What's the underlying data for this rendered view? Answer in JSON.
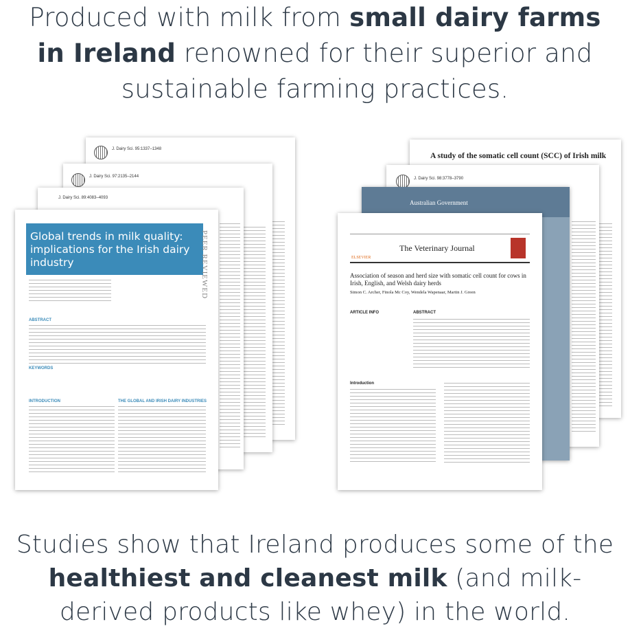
{
  "header": {
    "lead": "Produced with milk from ",
    "bold": "small dairy farms in Ireland",
    "tail": " renowned for their superior and sustainable farming practices."
  },
  "left_papers": {
    "back": [
      "J. Dairy Sci. 95:1337–1348",
      "J. Dairy Sci. 97:2135–2144",
      "J. Dairy Sci. 89:4083–4093"
    ],
    "front": {
      "title": "Global trends in milk quality: implications for the Irish dairy industry",
      "side": "PEER REVIEWED",
      "abstract": "ABSTRACT",
      "keywords": "KEYWORDS",
      "intro": "INTRODUCTION",
      "section": "THE GLOBAL AND IRISH DAIRY INDUSTRIES"
    }
  },
  "right_papers": {
    "back_title": "A study of the somatic cell count (SCC) of Irish milk",
    "back_cite": "J. Dairy Sci. 98:3778–3790",
    "gov": "Australian Government",
    "front": {
      "journal": "The Veterinary Journal",
      "publisher": "ELSEVIER",
      "title": "Association of season and herd size with somatic cell count for cows in Irish, English, and Welsh dairy herds",
      "authors": "Simon C. Archer, Finola Mc Coy, Wendela Wapenaar, Martin J. Green",
      "info": "ARTICLE INFO",
      "abstract": "ABSTRACT",
      "intro": "Introduction"
    }
  },
  "footer": {
    "lead": "Studies show that Ireland produces some of the ",
    "bold": "healthiest and cleanest milk",
    "tail": " (and milk-derived products like whey) in the world."
  }
}
